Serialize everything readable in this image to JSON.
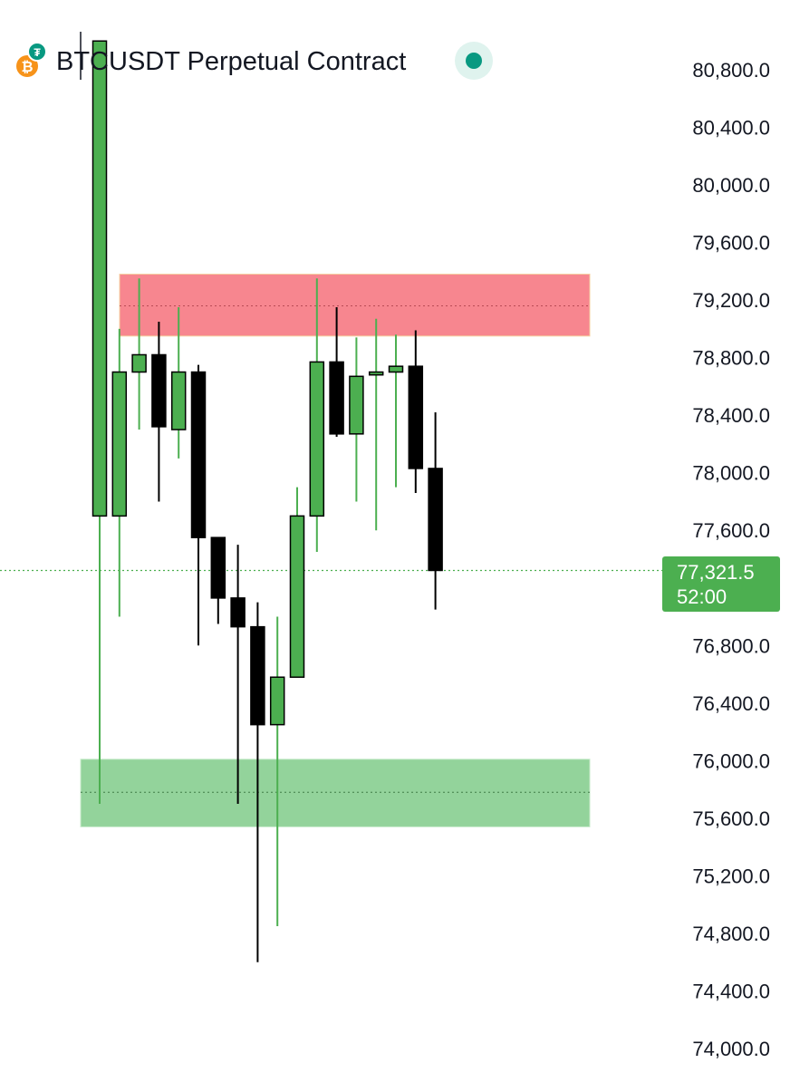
{
  "header": {
    "title": "BTCUSDT Perpetual Contract",
    "status": "online"
  },
  "current_price": {
    "price_label": "77,321.5",
    "countdown_label": "52:00"
  },
  "colors": {
    "bull": "#4caf50",
    "bear": "#000000",
    "resistance_zone": "#f7868f",
    "support_zone": "#93d39b",
    "price_tag": "#4caf50",
    "status_dot": "#089981",
    "coin": "#f7931a"
  },
  "chart_data": {
    "type": "candlestick",
    "title": "BTCUSDT Perpetual Contract",
    "ylim": [
      74000,
      81000
    ],
    "y_ticks": [
      80800,
      80400,
      80000,
      79600,
      79200,
      78800,
      78400,
      78000,
      77600,
      77200,
      76800,
      76400,
      76000,
      75600,
      75200,
      74800,
      74400,
      74000
    ],
    "y_tick_labels": [
      "80,800.0",
      "80,400.0",
      "80,000.0",
      "79,600.0",
      "79,200.0",
      "78,800.0",
      "78,400.0",
      "78,000.0",
      "77,600.0",
      "",
      "76,800.0",
      "76,400.0",
      "76,000.0",
      "75,600.0",
      "75,200.0",
      "74,800.0",
      "74,400.0",
      "74,000.0"
    ],
    "candles": [
      {
        "open": 77700,
        "high": 81000,
        "low": 75700,
        "close": 81000
      },
      {
        "open": 77700,
        "high": 79000,
        "low": 77000,
        "close": 78700
      },
      {
        "open": 78700,
        "high": 79350,
        "low": 78300,
        "close": 78820
      },
      {
        "open": 78820,
        "high": 79050,
        "low": 77800,
        "close": 78320
      },
      {
        "open": 78300,
        "high": 79150,
        "low": 78100,
        "close": 78700
      },
      {
        "open": 78700,
        "high": 78750,
        "low": 76800,
        "close": 77550
      },
      {
        "open": 77550,
        "high": 77550,
        "low": 76950,
        "close": 77130
      },
      {
        "open": 77130,
        "high": 77500,
        "low": 75700,
        "close": 76930
      },
      {
        "open": 76930,
        "high": 77100,
        "low": 74600,
        "close": 76250
      },
      {
        "open": 76250,
        "high": 77000,
        "low": 74850,
        "close": 76580
      },
      {
        "open": 76580,
        "high": 77900,
        "low": 76580,
        "close": 77700
      },
      {
        "open": 77700,
        "high": 79350,
        "low": 77450,
        "close": 78770
      },
      {
        "open": 78770,
        "high": 79150,
        "low": 78250,
        "close": 78270
      },
      {
        "open": 78270,
        "high": 78940,
        "low": 77800,
        "close": 78670
      },
      {
        "open": 78680,
        "high": 79070,
        "low": 77600,
        "close": 78700
      },
      {
        "open": 78700,
        "high": 78960,
        "low": 77900,
        "close": 78740
      },
      {
        "open": 78740,
        "high": 78990,
        "low": 77860,
        "close": 78030
      },
      {
        "open": 78030,
        "high": 78420,
        "low": 77050,
        "close": 77321.5
      }
    ],
    "zones": [
      {
        "kind": "resistance",
        "from": 78950,
        "to": 79380,
        "mid": 79160
      },
      {
        "kind": "support",
        "from": 75540,
        "to": 76010,
        "mid": 75780
      }
    ],
    "current_price": 77321.5,
    "grid": false
  }
}
